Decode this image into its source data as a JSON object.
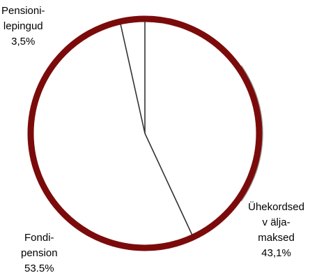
{
  "chart_data": {
    "type": "pie",
    "slices": [
      {
        "label_lines": [
          "Ühekordsed",
          "v älja-",
          "maksed",
          "43,1%"
        ],
        "value": 43.1
      },
      {
        "label_lines": [
          "Fondi-",
          "pension",
          "53.5%"
        ],
        "value": 53.5
      },
      {
        "label_lines": [
          "Pensioni-",
          "lepingud",
          "3,5%"
        ],
        "value": 3.5
      }
    ],
    "start_angle_deg": 0,
    "direction": "clockwise",
    "colors": {
      "outline": "#7b0b0b",
      "divider": "#333333",
      "fill": "#ffffff"
    }
  }
}
